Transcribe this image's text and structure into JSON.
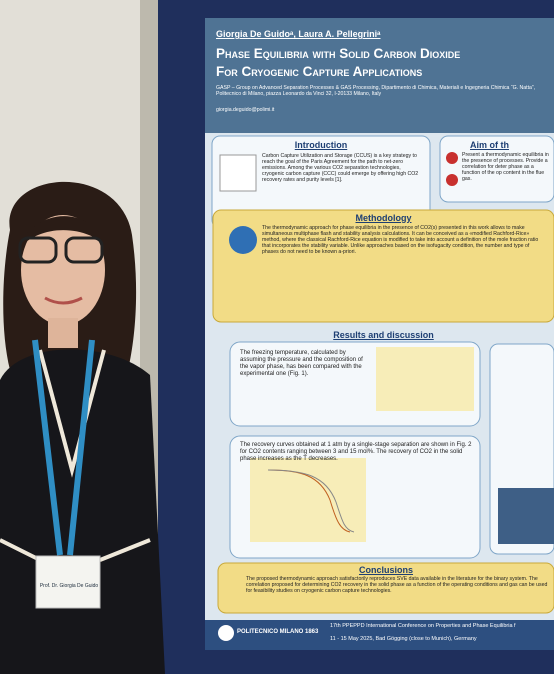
{
  "header": {
    "authors": "Giorgia De Guidoᵃ, Laura A. Pellegriniᵃ",
    "title_line1": "Phase Equilibria with Solid Carbon Dioxide",
    "title_line2": "For Cryogenic Capture Applications",
    "affiliation": "GASP – Group on Advanced Separation Processes & GAS Processing, Dipartimento di Chimica, Materiali e Ingegneria Chimica “G. Natta”, Politecnico di Milano, piazza Leonardo da Vinci 32, I-20133 Milano, Italy",
    "email": "giorgia.deguido@polimi.it"
  },
  "sections": [
    {
      "heading": "Introduction",
      "text": "Carbon Capture Utilization and Storage (CCUS) is a key strategy to reach the goal of the Paris Agreement for the path to net-zero emissions. Among the various CO2 separation technologies, cryogenic carbon capture (CCC) could emerge by offering high CO2 recovery rates and purity levels [1]."
    },
    {
      "heading": "Aim of th",
      "text": "Present a thermodynamic equilibria in the presence of processes. Provide a correlation for deter phase as a function of the op content in the flue gas."
    },
    {
      "heading": "Methodology",
      "text": "The thermodynamic approach for phase equilibria in the presence of CO2(s) presented in this work allows to make simultaneous multiphase flash and stability analysis calculations. It can be conceived as a «modified Rachford-Rice» method, where the classical Rachford-Rice equation is modified to take into account a definition of the mole fraction ratio that incorporates the stability variable. Unlike approaches based on the isofugacity condition, the number and type of phases do not need to be known a-priori."
    },
    {
      "heading": "Results and discussion",
      "text": "The freezing temperature, calculated by assuming the pressure and the composition of the vapor phase, has been compared with the experimental one (Fig. 1).",
      "text2": "The recovery curves obtained at 1 atm by a single-stage separation are shown in Fig. 2 for CO2 contents ranging between 3 and 15 mol%. The recovery of CO2 in the solid phase increases as the T decreases."
    },
    {
      "heading": "Conclusions",
      "text": "The proposed thermodynamic approach satisfactorily reproduces SVE data available in the literature for the binary system. The correlation proposed for determining CO2 recovery in the solid phase as a function of the operating conditions and gas can be used for feasibility studies on cryogenic carbon capture technologies."
    }
  ],
  "footer": {
    "logo": "POLITECNICO MILANO 1863",
    "conference": "17th PPEPPD International Conference on Properties and Phase Equilibria f",
    "date": "11 - 15 May 2025, Bad Gögging (close to Munich), Germany"
  },
  "badge": {
    "name": "Prof. Dr. Giorgia De Guido"
  }
}
